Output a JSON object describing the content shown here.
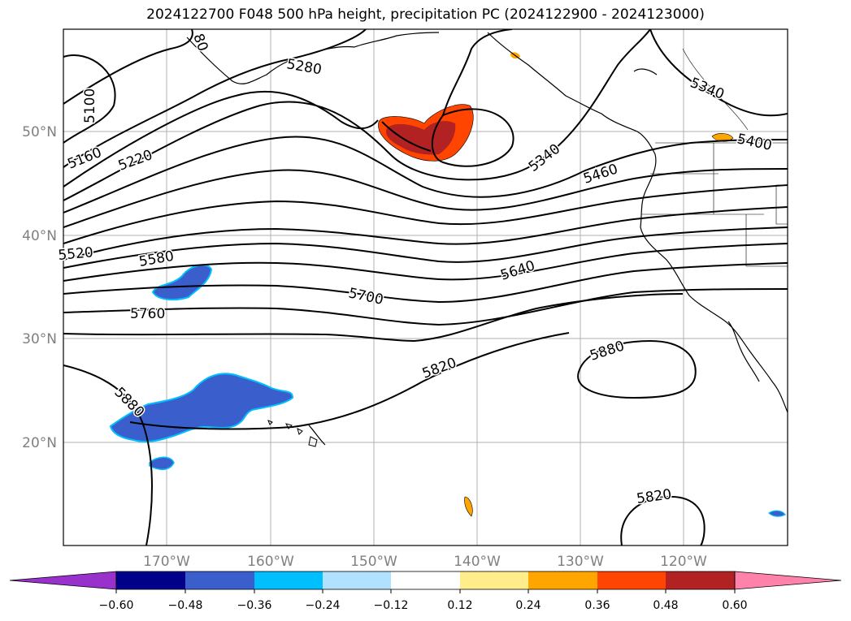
{
  "title": "2024122700 F048 500 hPa height, precipitation PC (2024122900 - 2024123000)",
  "map": {
    "lat_ticks": [
      "50°N",
      "40°N",
      "30°N",
      "20°N"
    ],
    "lon_ticks": [
      "170°W",
      "160°W",
      "150°W",
      "140°W",
      "130°W",
      "120°W"
    ],
    "contour_labels": [
      "5100",
      "5160",
      "5220",
      "80",
      "5280",
      "5340",
      "5340",
      "5400",
      "5460",
      "5520",
      "5580",
      "5640",
      "5700",
      "5760",
      "5820",
      "5880",
      "5880",
      "5820"
    ],
    "contour_color": "#000000"
  },
  "colorbar": {
    "ticks": [
      "−0.60",
      "−0.48",
      "−0.36",
      "−0.24",
      "−0.12",
      "0.12",
      "0.24",
      "0.36",
      "0.48",
      "0.60"
    ],
    "colors": [
      "#9932cc",
      "#00008b",
      "#3a5fcd",
      "#00bfff",
      "#b0e2ff",
      "#ffffff",
      "#ffec8b",
      "#ffa500",
      "#ff4500",
      "#b22222",
      "#ff82ab"
    ]
  }
}
